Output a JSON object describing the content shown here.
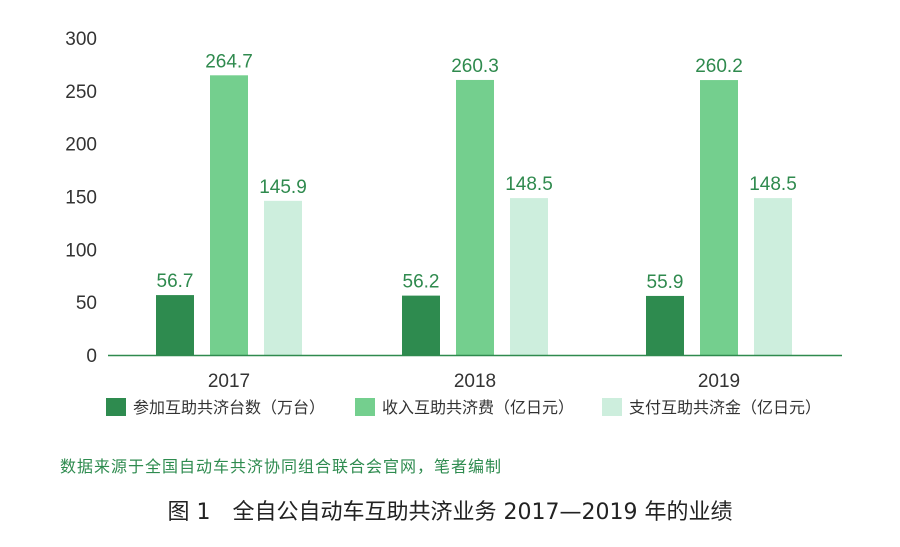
{
  "chart_data": {
    "type": "bar",
    "categories": [
      "2017",
      "2018",
      "2019"
    ],
    "series": [
      {
        "name": "参加互助共济台数（万台）",
        "values": [
          56.7,
          56.2,
          55.9
        ],
        "color": "#2e8b4f"
      },
      {
        "name": "收入互助共济费（亿日元）",
        "values": [
          264.7,
          260.3,
          260.2
        ],
        "color": "#74cf8e"
      },
      {
        "name": "支付互助共济金（亿日元）",
        "values": [
          145.9,
          148.5,
          148.5
        ],
        "color": "#cdeedd"
      }
    ],
    "data_labels": [
      [
        "56.7",
        "56.2",
        "55.9"
      ],
      [
        "264.7",
        "260.3",
        "260.2"
      ],
      [
        "145.9",
        "148.5",
        "148.5"
      ]
    ],
    "yticks": [
      "0",
      "50",
      "100",
      "150",
      "200",
      "250",
      "300"
    ],
    "ylim": [
      0,
      300
    ],
    "grid": false,
    "legend_position": "bottom",
    "label_color": "#2f8a4e",
    "axis_color": "#2f8a4e"
  },
  "source_note": "数据来源于全国自动车共济协同组合联合会官网，笔者编制",
  "caption": "图 1　全自公自动车互助共济业务 2017—2019 年的业绩"
}
